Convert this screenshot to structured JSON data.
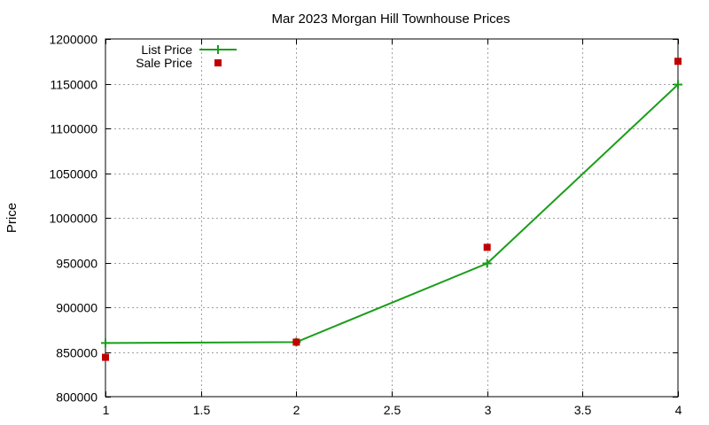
{
  "chart_data": {
    "type": "line",
    "title": "Mar 2023 Morgan Hill Townhouse Prices",
    "xlabel": "",
    "ylabel": "Price",
    "xlim": [
      1,
      4
    ],
    "ylim": [
      800000,
      1200000
    ],
    "xticks": [
      "1",
      "1.5",
      "2",
      "2.5",
      "3",
      "3.5",
      "4"
    ],
    "yticks": [
      "800000",
      "850000",
      "900000",
      "950000",
      "1000000",
      "1050000",
      "1100000",
      "1150000",
      "1200000"
    ],
    "grid": true,
    "legend_position": "top-left",
    "series": [
      {
        "name": "List Price",
        "style": "line-points",
        "marker": "plus",
        "color": "#1a9e1a",
        "x": [
          1,
          2,
          3,
          4
        ],
        "y": [
          860000,
          861000,
          949000,
          1149000
        ]
      },
      {
        "name": "Sale Price",
        "style": "points",
        "marker": "square",
        "color": "#c00000",
        "x": [
          1,
          2,
          3,
          4
        ],
        "y": [
          844000,
          861000,
          967000,
          1175000
        ]
      }
    ]
  }
}
